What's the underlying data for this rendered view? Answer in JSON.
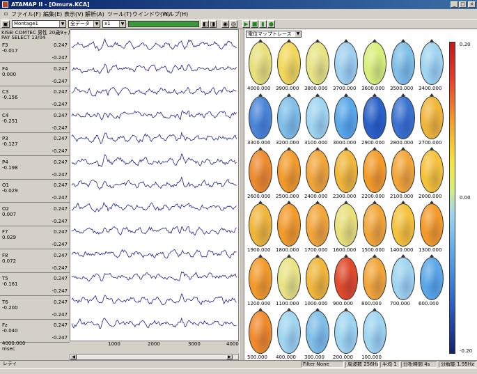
{
  "window": {
    "title": "ATAMAP II - [Omura.KCA]",
    "controls": [
      "_",
      "□",
      "×"
    ]
  },
  "menu": [
    "ファイル(F)",
    "編集(E)",
    "表示(V)",
    "解析(A)",
    "ツール(T)",
    "ウインドウ(W)",
    "ヘルプ(H)"
  ],
  "toolbar": {
    "montage": "Montage1",
    "data_select": "全データ",
    "scale": "x1",
    "progress_fraction": 1.0
  },
  "trace_panel": {
    "header_line1": "KISEI COMTEC 男性 20歳9ヶ月",
    "header_line2": "PAY SELECT 13/04",
    "channels": [
      {
        "name": "F3",
        "offset": "-0.017",
        "scale_pos": "0.247",
        "scale_neg": "-0.247"
      },
      {
        "name": "F4",
        "offset": "0.000",
        "scale_pos": "0.247",
        "scale_neg": "-0.247"
      },
      {
        "name": "C3",
        "offset": "-0.156",
        "scale_pos": "0.247",
        "scale_neg": "-0.247"
      },
      {
        "name": "C4",
        "offset": "-0.251",
        "scale_pos": "0.247",
        "scale_neg": "-0.247"
      },
      {
        "name": "P3",
        "offset": "-0.127",
        "scale_pos": "0.247",
        "scale_neg": "-0.247"
      },
      {
        "name": "P4",
        "offset": "-0.198",
        "scale_pos": "0.247",
        "scale_neg": "-0.247"
      },
      {
        "name": "O1",
        "offset": "-0.029",
        "scale_pos": "0.247",
        "scale_neg": "-0.247"
      },
      {
        "name": "O2",
        "offset": "0.007",
        "scale_pos": "0.247",
        "scale_neg": "-0.247"
      },
      {
        "name": "F7",
        "offset": "0.029",
        "scale_pos": "0.247",
        "scale_neg": "-0.247"
      },
      {
        "name": "F8",
        "offset": "0.072",
        "scale_pos": "0.247",
        "scale_neg": "-0.247"
      },
      {
        "name": "T5",
        "offset": "-0.161",
        "scale_pos": "0.247",
        "scale_neg": "-0.247"
      },
      {
        "name": "T6",
        "offset": "-0.200",
        "scale_pos": "0.247",
        "scale_neg": "-0.247"
      },
      {
        "name": "Fz",
        "offset": "-0.040",
        "scale_pos": "0.247",
        "scale_neg": "-0.247"
      }
    ],
    "footer_value": "4000.000",
    "footer_unit": "msec",
    "x_ticks": [
      "1000",
      "2000",
      "3000",
      "4000"
    ]
  },
  "map_panel": {
    "mode": "電位マップトレース",
    "rows": [
      [
        "4000.000",
        "3900.000",
        "3800.000",
        "3700.000",
        "3600.000",
        "3500.000",
        "3400.000"
      ],
      [
        "3300.000",
        "3200.000",
        "3100.000",
        "3000.000",
        "2900.000",
        "2800.000",
        "2700.000"
      ],
      [
        "2600.000",
        "2500.000",
        "2400.000",
        "2300.000",
        "2200.000",
        "2100.000",
        "2000.000"
      ],
      [
        "1900.000",
        "1800.000",
        "1700.000",
        "1600.000",
        "1500.000",
        "1400.000",
        "1300.000"
      ],
      [
        "1200.000",
        "1100.000",
        "1000.000",
        "900.000",
        "800.000",
        "700.000",
        "600.000"
      ],
      [
        "500.000",
        "400.000",
        "300.000",
        "200.000",
        "100.000"
      ]
    ],
    "row_colors": [
      [
        "#e8e07a",
        "#f2d85a",
        "#e8e484",
        "#9fd0ef",
        "#d7ef7a",
        "#7fbfe8",
        "#9fd5f0"
      ],
      [
        "#4a86d8",
        "#7fbfe8",
        "#9fd5f0",
        "#5aa8e8",
        "#2b62c8",
        "#3a72d0",
        "#f0b63a"
      ],
      [
        "#ee8a2c",
        "#f39b2a",
        "#f2a63a",
        "#f0b63a",
        "#f39b2a",
        "#f2a63a",
        "#f6c23a"
      ],
      [
        "#f0b63a",
        "#f39b2a",
        "#f2a63a",
        "#e8e07a",
        "#f2a63a",
        "#f6c23a",
        "#f39b2a"
      ],
      [
        "#f39b2a",
        "#e8e484",
        "#f0b63a",
        "#e04a2a",
        "#f2a63a",
        "#9fd5f0",
        "#5aa8e8"
      ],
      [
        "#f08a2c",
        "#9fd5f0",
        "#7fbfe8",
        "#9fd5f0",
        "#9fd5f0"
      ]
    ],
    "colorbar": {
      "top": "0.20",
      "mid": "0.00",
      "bottom": "-0.20"
    }
  },
  "status_bar": {
    "left": "レディ",
    "filter": "Filter None",
    "freq": "周波数 256Hz",
    "avg": "平均 1",
    "time_window": "分析時間 4s",
    "resolution": "分解能 1.95Hz"
  },
  "colors": {
    "trace": "#1a1a8c",
    "progress": "#3a9a3a",
    "titlebar": "#0a246a"
  }
}
